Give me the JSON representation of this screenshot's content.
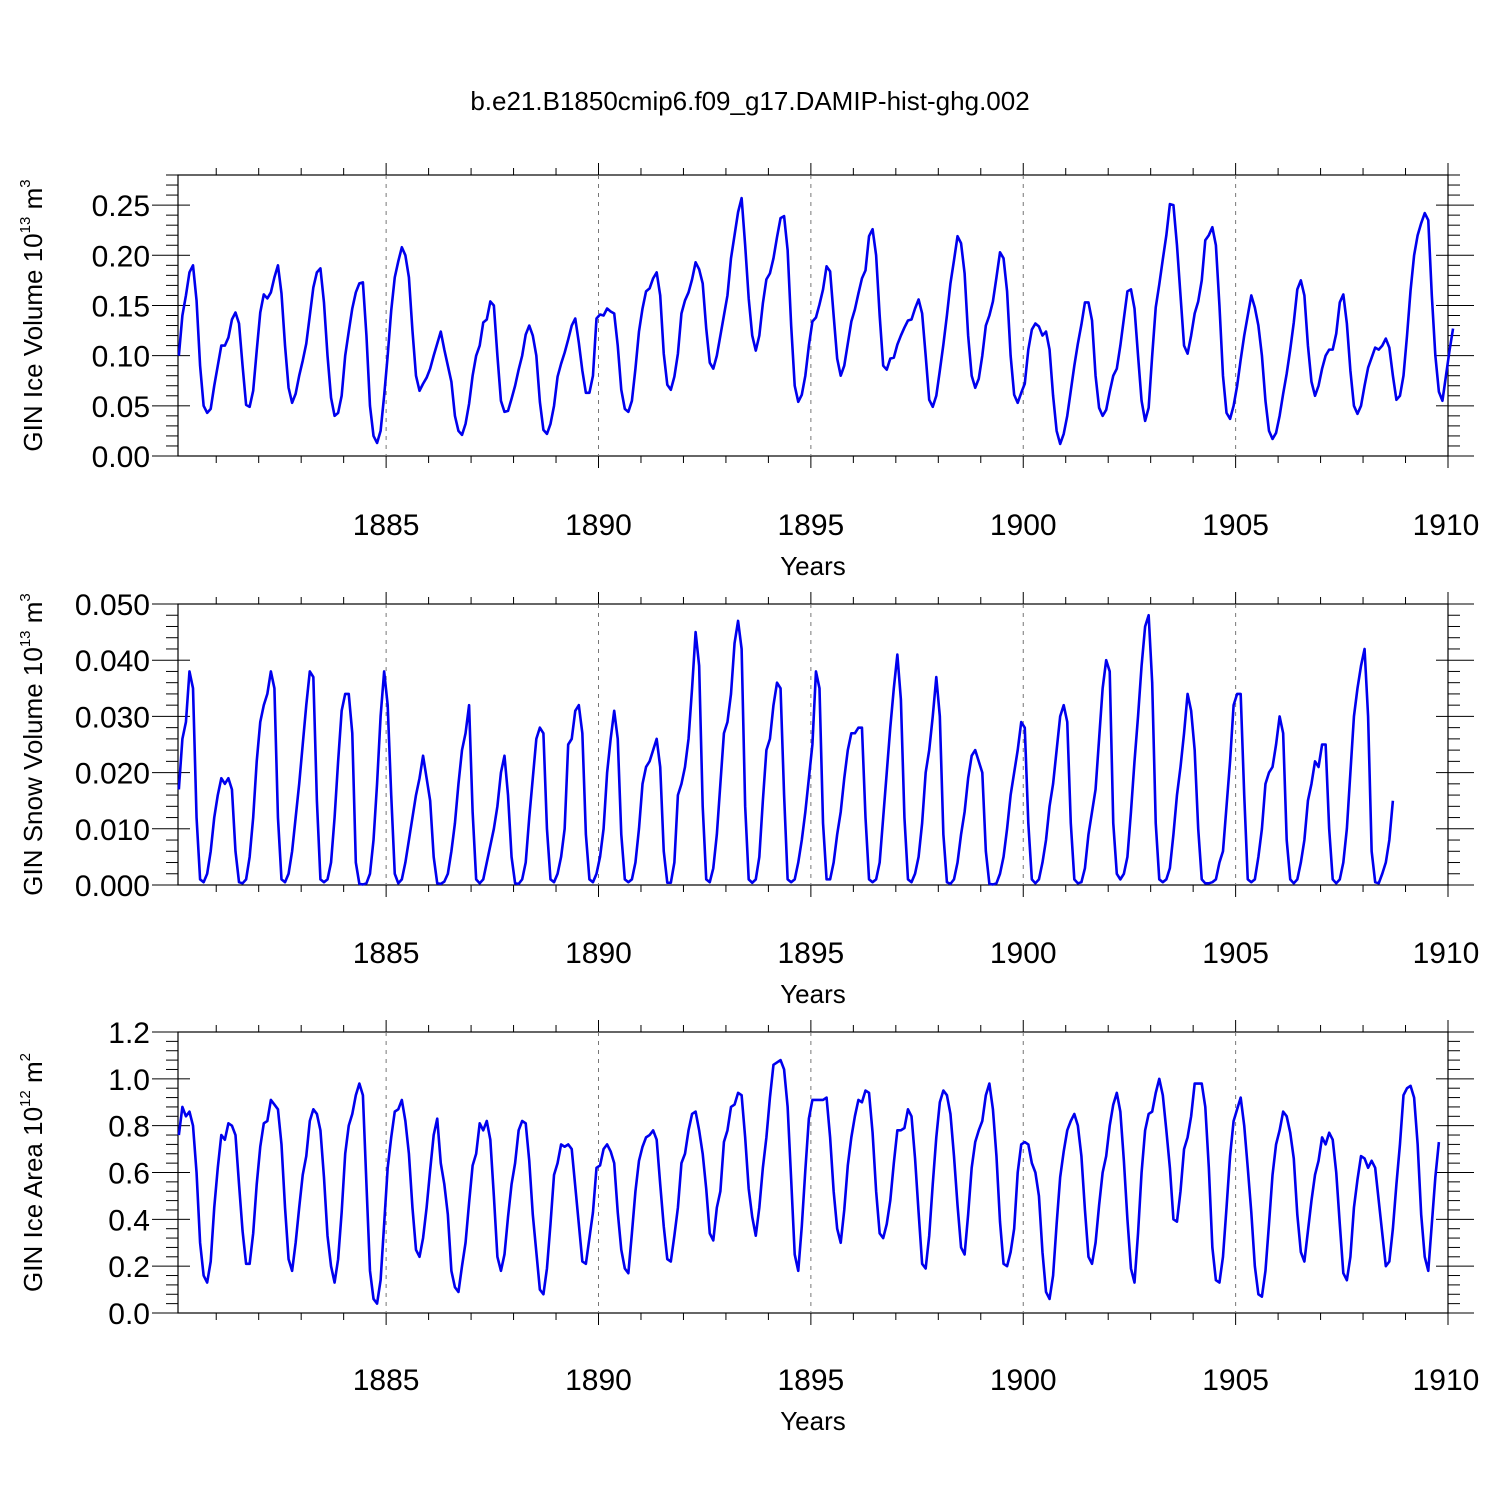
{
  "figure": {
    "title": "b.e21.B1850cmip6.f09_g17.DAMIP-hist-ghg.002"
  },
  "chart_data": [
    {
      "type": "line",
      "name": "ice-volume",
      "ylabel_main": "GIN Ice Volume 10",
      "ylabel_exp": "13",
      "ylabel_unit": " m",
      "ylabel_unit_exp": "3",
      "xlabel": "Years",
      "xlim": [
        1880.1,
        1910
      ],
      "ylim": [
        0,
        0.28
      ],
      "xticks": [
        1885,
        1890,
        1895,
        1900,
        1905,
        1910
      ],
      "xtick_labels": [
        "1885",
        "1890",
        "1895",
        "1900",
        "1905",
        "1910"
      ],
      "yticks": [
        0,
        0.05,
        0.1,
        0.15,
        0.2,
        0.25
      ],
      "ytick_labels": [
        "0.00",
        "0.05",
        "0.10",
        "0.15",
        "0.20",
        "0.25"
      ],
      "line_color": "#0000ee",
      "x_start": 1880.12,
      "x_step": 0.08333,
      "values": [
        0.1,
        0.14,
        0.16,
        0.183,
        0.19,
        0.155,
        0.09,
        0.05,
        0.043,
        0.047,
        0.07,
        0.09,
        0.11,
        0.11,
        0.118,
        0.136,
        0.143,
        0.132,
        0.09,
        0.051,
        0.049,
        0.065,
        0.105,
        0.143,
        0.161,
        0.157,
        0.163,
        0.178,
        0.19,
        0.162,
        0.11,
        0.068,
        0.053,
        0.062,
        0.08,
        0.095,
        0.112,
        0.14,
        0.168,
        0.183,
        0.187,
        0.153,
        0.1,
        0.058,
        0.04,
        0.043,
        0.06,
        0.1,
        0.124,
        0.147,
        0.163,
        0.172,
        0.173,
        0.12,
        0.05,
        0.02,
        0.013,
        0.025,
        0.06,
        0.1,
        0.145,
        0.178,
        0.194,
        0.208,
        0.2,
        0.178,
        0.125,
        0.08,
        0.065,
        0.072,
        0.078,
        0.087,
        0.1,
        0.112,
        0.124,
        0.106,
        0.09,
        0.074,
        0.04,
        0.025,
        0.021,
        0.032,
        0.052,
        0.08,
        0.1,
        0.11,
        0.133,
        0.136,
        0.154,
        0.15,
        0.1,
        0.055,
        0.044,
        0.045,
        0.057,
        0.07,
        0.086,
        0.1,
        0.121,
        0.13,
        0.12,
        0.1,
        0.054,
        0.026,
        0.022,
        0.032,
        0.05,
        0.079,
        0.092,
        0.103,
        0.116,
        0.13,
        0.137,
        0.113,
        0.085,
        0.063,
        0.063,
        0.08,
        0.137,
        0.141,
        0.14,
        0.147,
        0.144,
        0.142,
        0.11,
        0.066,
        0.047,
        0.044,
        0.055,
        0.087,
        0.124,
        0.147,
        0.164,
        0.167,
        0.177,
        0.183,
        0.16,
        0.102,
        0.071,
        0.066,
        0.079,
        0.102,
        0.142,
        0.155,
        0.163,
        0.176,
        0.193,
        0.186,
        0.172,
        0.127,
        0.093,
        0.087,
        0.1,
        0.12,
        0.14,
        0.16,
        0.197,
        0.22,
        0.243,
        0.257,
        0.21,
        0.157,
        0.12,
        0.105,
        0.12,
        0.152,
        0.176,
        0.182,
        0.197,
        0.218,
        0.237,
        0.239,
        0.205,
        0.13,
        0.07,
        0.054,
        0.061,
        0.08,
        0.11,
        0.134,
        0.138,
        0.151,
        0.166,
        0.189,
        0.184,
        0.14,
        0.097,
        0.08,
        0.09,
        0.112,
        0.134,
        0.146,
        0.162,
        0.177,
        0.185,
        0.219,
        0.226,
        0.2,
        0.14,
        0.09,
        0.086,
        0.097,
        0.098,
        0.111,
        0.12,
        0.128,
        0.135,
        0.136,
        0.147,
        0.156,
        0.142,
        0.1,
        0.056,
        0.049,
        0.06,
        0.085,
        0.111,
        0.14,
        0.172,
        0.195,
        0.219,
        0.212,
        0.182,
        0.12,
        0.08,
        0.068,
        0.077,
        0.1,
        0.13,
        0.14,
        0.154,
        0.178,
        0.203,
        0.197,
        0.164,
        0.1,
        0.061,
        0.053,
        0.063,
        0.072,
        0.106,
        0.126,
        0.132,
        0.129,
        0.12,
        0.124,
        0.106,
        0.06,
        0.025,
        0.012,
        0.022,
        0.04,
        0.065,
        0.09,
        0.112,
        0.131,
        0.153,
        0.153,
        0.135,
        0.08,
        0.048,
        0.04,
        0.046,
        0.064,
        0.08,
        0.087,
        0.11,
        0.137,
        0.164,
        0.166,
        0.147,
        0.1,
        0.055,
        0.035,
        0.048,
        0.1,
        0.148,
        0.171,
        0.196,
        0.22,
        0.251,
        0.25,
        0.21,
        0.16,
        0.11,
        0.102,
        0.12,
        0.142,
        0.154,
        0.175,
        0.215,
        0.22,
        0.228,
        0.21,
        0.15,
        0.08,
        0.043,
        0.037,
        0.05,
        0.07,
        0.096,
        0.12,
        0.14,
        0.16,
        0.148,
        0.13,
        0.1,
        0.055,
        0.025,
        0.017,
        0.023,
        0.04,
        0.062,
        0.082,
        0.106,
        0.133,
        0.166,
        0.175,
        0.16,
        0.11,
        0.074,
        0.06,
        0.07,
        0.087,
        0.1,
        0.106,
        0.106,
        0.122,
        0.153,
        0.161,
        0.132,
        0.085,
        0.05,
        0.042,
        0.05,
        0.07,
        0.088,
        0.098,
        0.108,
        0.106,
        0.11,
        0.117,
        0.108,
        0.08,
        0.056,
        0.06,
        0.08,
        0.12,
        0.165,
        0.2,
        0.22,
        0.232,
        0.242,
        0.235,
        0.16,
        0.1,
        0.064,
        0.055,
        0.08,
        0.105,
        0.127
      ]
    },
    {
      "type": "line",
      "name": "snow-volume",
      "ylabel_main": "GIN Snow Volume 10",
      "ylabel_exp": "13",
      "ylabel_unit": " m",
      "ylabel_unit_exp": "3",
      "xlabel": "Years",
      "xlim": [
        1880.1,
        1910
      ],
      "ylim": [
        0,
        0.05
      ],
      "xticks": [
        1885,
        1890,
        1895,
        1900,
        1905,
        1910
      ],
      "xtick_labels": [
        "1885",
        "1890",
        "1895",
        "1900",
        "1905",
        "1910"
      ],
      "yticks": [
        0,
        0.01,
        0.02,
        0.03,
        0.04,
        0.05
      ],
      "ytick_labels": [
        "0.000",
        "0.010",
        "0.020",
        "0.030",
        "0.040",
        "0.050"
      ],
      "line_color": "#0000ee",
      "x_start": 1880.12,
      "x_step": 0.08333,
      "values": [
        0.017,
        0.026,
        0.029,
        0.038,
        0.035,
        0.012,
        0.001,
        0.0005,
        0.002,
        0.006,
        0.012,
        0.016,
        0.019,
        0.018,
        0.019,
        0.017,
        0.006,
        0.0005,
        0.0003,
        0.001,
        0.005,
        0.012,
        0.022,
        0.029,
        0.032,
        0.034,
        0.038,
        0.035,
        0.012,
        0.001,
        0.0005,
        0.002,
        0.006,
        0.012,
        0.018,
        0.025,
        0.032,
        0.038,
        0.037,
        0.015,
        0.001,
        0.0005,
        0.001,
        0.004,
        0.012,
        0.022,
        0.031,
        0.034,
        0.034,
        0.027,
        0.004,
        0.0002,
        0.0001,
        0.0003,
        0.002,
        0.008,
        0.018,
        0.03,
        0.038,
        0.032,
        0.016,
        0.002,
        0.0003,
        0.001,
        0.004,
        0.008,
        0.012,
        0.016,
        0.019,
        0.023,
        0.019,
        0.015,
        0.005,
        0.0003,
        0.0002,
        0.0006,
        0.002,
        0.006,
        0.011,
        0.018,
        0.024,
        0.027,
        0.032,
        0.013,
        0.001,
        0.0003,
        0.001,
        0.004,
        0.007,
        0.01,
        0.014,
        0.02,
        0.023,
        0.016,
        0.005,
        0.0003,
        0.0002,
        0.001,
        0.004,
        0.012,
        0.019,
        0.026,
        0.028,
        0.027,
        0.01,
        0.001,
        0.0005,
        0.002,
        0.005,
        0.01,
        0.025,
        0.026,
        0.031,
        0.032,
        0.027,
        0.009,
        0.001,
        0.0005,
        0.002,
        0.005,
        0.01,
        0.02,
        0.026,
        0.031,
        0.026,
        0.009,
        0.001,
        0.0005,
        0.001,
        0.004,
        0.01,
        0.018,
        0.021,
        0.022,
        0.024,
        0.026,
        0.021,
        0.006,
        0.0004,
        0.0004,
        0.004,
        0.016,
        0.018,
        0.021,
        0.026,
        0.035,
        0.045,
        0.039,
        0.014,
        0.001,
        0.0005,
        0.003,
        0.009,
        0.018,
        0.027,
        0.029,
        0.034,
        0.043,
        0.047,
        0.042,
        0.014,
        0.001,
        0.0004,
        0.001,
        0.005,
        0.015,
        0.024,
        0.026,
        0.032,
        0.036,
        0.035,
        0.016,
        0.001,
        0.0005,
        0.001,
        0.004,
        0.008,
        0.013,
        0.019,
        0.025,
        0.038,
        0.035,
        0.011,
        0.001,
        0.001,
        0.004,
        0.009,
        0.013,
        0.019,
        0.024,
        0.027,
        0.027,
        0.028,
        0.028,
        0.012,
        0.001,
        0.0005,
        0.001,
        0.004,
        0.012,
        0.02,
        0.028,
        0.035,
        0.041,
        0.033,
        0.012,
        0.001,
        0.0005,
        0.002,
        0.005,
        0.011,
        0.02,
        0.024,
        0.03,
        0.037,
        0.03,
        0.009,
        0.0005,
        0.0002,
        0.001,
        0.004,
        0.009,
        0.013,
        0.019,
        0.023,
        0.024,
        0.022,
        0.02,
        0.006,
        0.0002,
        0.0001,
        0.0003,
        0.002,
        0.005,
        0.01,
        0.016,
        0.02,
        0.024,
        0.029,
        0.028,
        0.011,
        0.001,
        0.0003,
        0.001,
        0.004,
        0.008,
        0.014,
        0.018,
        0.024,
        0.03,
        0.032,
        0.029,
        0.011,
        0.001,
        0.0003,
        0.0005,
        0.003,
        0.009,
        0.013,
        0.017,
        0.026,
        0.035,
        0.04,
        0.038,
        0.011,
        0.002,
        0.001,
        0.002,
        0.005,
        0.013,
        0.022,
        0.03,
        0.039,
        0.046,
        0.048,
        0.036,
        0.011,
        0.001,
        0.0005,
        0.001,
        0.003,
        0.009,
        0.016,
        0.021,
        0.027,
        0.034,
        0.031,
        0.024,
        0.01,
        0.001,
        0.0003,
        0.0003,
        0.0005,
        0.001,
        0.004,
        0.006,
        0.014,
        0.022,
        0.032,
        0.034,
        0.034,
        0.016,
        0.001,
        0.0005,
        0.001,
        0.005,
        0.01,
        0.018,
        0.02,
        0.021,
        0.025,
        0.03,
        0.027,
        0.008,
        0.001,
        0.0003,
        0.001,
        0.004,
        0.008,
        0.015,
        0.018,
        0.022,
        0.021,
        0.025,
        0.025,
        0.01,
        0.001,
        0.0003,
        0.001,
        0.004,
        0.01,
        0.02,
        0.03,
        0.035,
        0.039,
        0.042,
        0.03,
        0.006,
        0.0005,
        0.0003,
        0.002,
        0.004,
        0.008,
        0.015
      ]
    },
    {
      "type": "line",
      "name": "ice-area",
      "ylabel_main": "GIN Ice Area 10",
      "ylabel_exp": "12",
      "ylabel_unit": " m",
      "ylabel_unit_exp": "2",
      "xlabel": "Years",
      "xlim": [
        1880.1,
        1910
      ],
      "ylim": [
        0,
        1.2
      ],
      "xticks": [
        1885,
        1890,
        1895,
        1900,
        1905,
        1910
      ],
      "xtick_labels": [
        "1885",
        "1890",
        "1895",
        "1900",
        "1905",
        "1910"
      ],
      "yticks": [
        0,
        0.2,
        0.4,
        0.6,
        0.8,
        1.0,
        1.2
      ],
      "ytick_labels": [
        "0.0",
        "0.2",
        "0.4",
        "0.6",
        "0.8",
        "1.0",
        "1.2"
      ],
      "line_color": "#0000ee",
      "x_start": 1880.12,
      "x_step": 0.08333,
      "values": [
        0.76,
        0.88,
        0.84,
        0.86,
        0.8,
        0.6,
        0.3,
        0.16,
        0.13,
        0.22,
        0.45,
        0.62,
        0.76,
        0.74,
        0.81,
        0.8,
        0.76,
        0.55,
        0.35,
        0.21,
        0.21,
        0.34,
        0.55,
        0.71,
        0.81,
        0.82,
        0.91,
        0.89,
        0.87,
        0.72,
        0.45,
        0.23,
        0.18,
        0.3,
        0.45,
        0.59,
        0.67,
        0.82,
        0.87,
        0.85,
        0.78,
        0.58,
        0.33,
        0.2,
        0.13,
        0.23,
        0.43,
        0.68,
        0.8,
        0.85,
        0.93,
        0.98,
        0.93,
        0.55,
        0.18,
        0.06,
        0.04,
        0.14,
        0.38,
        0.62,
        0.75,
        0.86,
        0.87,
        0.91,
        0.82,
        0.68,
        0.45,
        0.27,
        0.24,
        0.32,
        0.45,
        0.61,
        0.76,
        0.83,
        0.64,
        0.55,
        0.42,
        0.18,
        0.11,
        0.09,
        0.2,
        0.3,
        0.47,
        0.63,
        0.68,
        0.81,
        0.78,
        0.82,
        0.74,
        0.5,
        0.24,
        0.18,
        0.25,
        0.41,
        0.55,
        0.64,
        0.78,
        0.82,
        0.81,
        0.65,
        0.42,
        0.26,
        0.1,
        0.08,
        0.19,
        0.38,
        0.59,
        0.64,
        0.72,
        0.71,
        0.72,
        0.7,
        0.54,
        0.38,
        0.22,
        0.21,
        0.32,
        0.43,
        0.62,
        0.63,
        0.7,
        0.72,
        0.69,
        0.64,
        0.43,
        0.27,
        0.19,
        0.17,
        0.34,
        0.52,
        0.65,
        0.71,
        0.75,
        0.76,
        0.78,
        0.74,
        0.55,
        0.37,
        0.23,
        0.22,
        0.33,
        0.45,
        0.64,
        0.68,
        0.78,
        0.85,
        0.86,
        0.78,
        0.68,
        0.53,
        0.34,
        0.31,
        0.45,
        0.52,
        0.73,
        0.78,
        0.88,
        0.89,
        0.94,
        0.93,
        0.75,
        0.53,
        0.41,
        0.33,
        0.45,
        0.62,
        0.75,
        0.92,
        1.06,
        1.07,
        1.08,
        1.04,
        0.88,
        0.57,
        0.25,
        0.18,
        0.37,
        0.61,
        0.83,
        0.91,
        0.91,
        0.91,
        0.91,
        0.92,
        0.75,
        0.52,
        0.36,
        0.3,
        0.44,
        0.63,
        0.75,
        0.84,
        0.91,
        0.9,
        0.95,
        0.94,
        0.77,
        0.52,
        0.34,
        0.32,
        0.38,
        0.48,
        0.64,
        0.78,
        0.78,
        0.79,
        0.87,
        0.84,
        0.66,
        0.43,
        0.21,
        0.19,
        0.33,
        0.55,
        0.75,
        0.9,
        0.95,
        0.93,
        0.85,
        0.67,
        0.46,
        0.28,
        0.25,
        0.42,
        0.62,
        0.73,
        0.78,
        0.82,
        0.93,
        0.98,
        0.87,
        0.67,
        0.39,
        0.21,
        0.2,
        0.26,
        0.36,
        0.6,
        0.72,
        0.73,
        0.72,
        0.64,
        0.6,
        0.5,
        0.26,
        0.09,
        0.06,
        0.16,
        0.38,
        0.58,
        0.69,
        0.78,
        0.82,
        0.85,
        0.8,
        0.67,
        0.44,
        0.24,
        0.21,
        0.3,
        0.46,
        0.6,
        0.67,
        0.8,
        0.89,
        0.94,
        0.86,
        0.65,
        0.4,
        0.19,
        0.13,
        0.34,
        0.6,
        0.78,
        0.85,
        0.86,
        0.94,
        1.0,
        0.93,
        0.78,
        0.62,
        0.4,
        0.39,
        0.52,
        0.7,
        0.75,
        0.84,
        0.98,
        0.98,
        0.98,
        0.88,
        0.62,
        0.28,
        0.14,
        0.13,
        0.24,
        0.45,
        0.67,
        0.82,
        0.87,
        0.92,
        0.8,
        0.62,
        0.43,
        0.2,
        0.08,
        0.07,
        0.18,
        0.38,
        0.59,
        0.72,
        0.78,
        0.86,
        0.84,
        0.77,
        0.66,
        0.42,
        0.26,
        0.22,
        0.35,
        0.48,
        0.59,
        0.65,
        0.75,
        0.72,
        0.77,
        0.74,
        0.6,
        0.38,
        0.17,
        0.14,
        0.24,
        0.45,
        0.57,
        0.67,
        0.66,
        0.62,
        0.65,
        0.62,
        0.48,
        0.34,
        0.2,
        0.22,
        0.36,
        0.55,
        0.72,
        0.93,
        0.96,
        0.97,
        0.92,
        0.72,
        0.42,
        0.24,
        0.18,
        0.38,
        0.58,
        0.73
      ]
    }
  ]
}
